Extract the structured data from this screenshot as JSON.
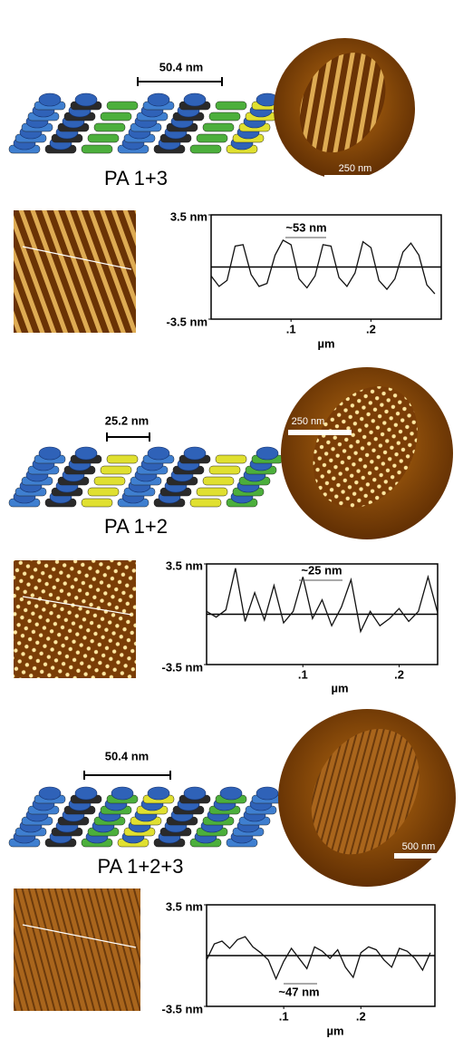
{
  "panels": [
    {
      "spacing_label": "50.4 nm",
      "name": "PA 1+3",
      "scale_bar": "250 nm"
    },
    {
      "spacing_label": "25.2 nm",
      "name": "PA 1+2",
      "scale_bar": "250 nm"
    },
    {
      "spacing_label": "50.4 nm",
      "name": "PA 1+2+3",
      "scale_bar": "500 nm"
    }
  ],
  "chart_data": [
    {
      "type": "line",
      "annotation": "~53 nm",
      "xlabel": "µm",
      "xlim": [
        0,
        0.288
      ],
      "ylim": [
        -3.5,
        3.5
      ],
      "xticks": [
        {
          "value": 0.1,
          "label": ".1"
        },
        {
          "value": 0.2,
          "label": ".2"
        }
      ],
      "yticks": [
        {
          "value": 3.5,
          "label": "3.5 nm"
        },
        {
          "value": -3.5,
          "label": "-3.5 nm"
        }
      ],
      "x": [
        0,
        0.01,
        0.02,
        0.03,
        0.04,
        0.05,
        0.06,
        0.07,
        0.08,
        0.09,
        0.1,
        0.11,
        0.12,
        0.13,
        0.14,
        0.15,
        0.16,
        0.17,
        0.18,
        0.19,
        0.2,
        0.21,
        0.22,
        0.23,
        0.24,
        0.25,
        0.26,
        0.27,
        0.28
      ],
      "values": [
        -0.6,
        -1.3,
        -0.9,
        1.4,
        1.5,
        -0.5,
        -1.3,
        -1.1,
        0.8,
        1.8,
        1.5,
        -0.8,
        -1.4,
        -0.6,
        1.5,
        1.4,
        -0.7,
        -1.3,
        -0.4,
        1.7,
        1.3,
        -0.9,
        -1.5,
        -0.8,
        1.0,
        1.6,
        0.8,
        -1.2,
        -1.8
      ]
    },
    {
      "type": "line",
      "annotation": "~25 nm",
      "xlabel": "µm",
      "xlim": [
        0,
        0.24
      ],
      "ylim": [
        -3.5,
        3.5
      ],
      "xticks": [
        {
          "value": 0.1,
          "label": ".1"
        },
        {
          "value": 0.2,
          "label": ".2"
        }
      ],
      "yticks": [
        {
          "value": 3.5,
          "label": "3.5 nm"
        },
        {
          "value": -3.5,
          "label": "-3.5 nm"
        }
      ],
      "x": [
        0,
        0.01,
        0.02,
        0.03,
        0.04,
        0.05,
        0.06,
        0.07,
        0.08,
        0.09,
        0.1,
        0.11,
        0.12,
        0.13,
        0.14,
        0.15,
        0.16,
        0.17,
        0.18,
        0.19,
        0.2,
        0.21,
        0.22,
        0.23,
        0.24
      ],
      "values": [
        0.2,
        -0.2,
        0.3,
        3.2,
        -0.5,
        1.5,
        -0.4,
        2.0,
        -0.6,
        0.2,
        2.6,
        -0.3,
        1.0,
        -0.8,
        0.5,
        2.4,
        -1.2,
        0.2,
        -0.8,
        -0.3,
        0.4,
        -0.5,
        0.2,
        2.6,
        0.1
      ]
    },
    {
      "type": "line",
      "annotation": "~47 nm",
      "xlabel": "µm",
      "xlim": [
        0,
        0.296
      ],
      "ylim": [
        -3.5,
        3.5
      ],
      "xticks": [
        {
          "value": 0.1,
          "label": ".1"
        },
        {
          "value": 0.2,
          "label": ".2"
        }
      ],
      "yticks": [
        {
          "value": 3.5,
          "label": "3.5 nm"
        },
        {
          "value": -3.5,
          "label": "-3.5 nm"
        }
      ],
      "x": [
        0,
        0.01,
        0.02,
        0.03,
        0.04,
        0.05,
        0.06,
        0.07,
        0.08,
        0.09,
        0.1,
        0.11,
        0.12,
        0.13,
        0.14,
        0.15,
        0.16,
        0.17,
        0.18,
        0.19,
        0.2,
        0.21,
        0.22,
        0.23,
        0.24,
        0.25,
        0.26,
        0.27,
        0.28,
        0.29
      ],
      "values": [
        -0.3,
        0.8,
        1.0,
        0.5,
        1.1,
        1.3,
        0.6,
        0.2,
        -0.3,
        -1.6,
        -0.4,
        0.5,
        -0.2,
        -0.9,
        0.6,
        0.3,
        -0.2,
        0.4,
        -0.8,
        -1.5,
        0.2,
        0.6,
        0.4,
        -0.3,
        -0.8,
        0.5,
        0.3,
        -0.2,
        -1.0,
        0.2
      ]
    }
  ]
}
